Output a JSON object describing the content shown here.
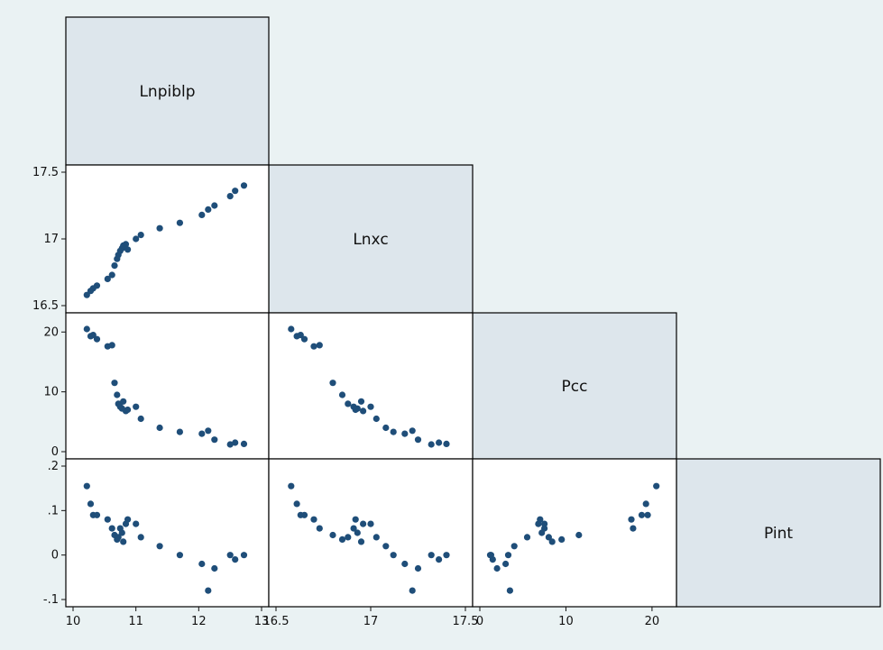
{
  "chart_data": {
    "type": "scatter",
    "subtype": "scatterplot-matrix-lower-half",
    "grid": false,
    "marker_color": "#1f4e79",
    "label_box_color": "#dde6ec",
    "background_color": "#eaf2f3",
    "variables": [
      {
        "name": "Lnpiblp",
        "range": [
          10,
          13
        ],
        "ticks": [
          10,
          11,
          12,
          13
        ],
        "tick_labels": [
          "10",
          "11",
          "12",
          "13"
        ]
      },
      {
        "name": "Lnxc",
        "range": [
          16.5,
          17.5
        ],
        "ticks": [
          16.5,
          17,
          17.5
        ],
        "tick_labels": [
          "16.5",
          "17",
          "17.5"
        ]
      },
      {
        "name": "Pcc",
        "range": [
          0,
          22
        ],
        "ticks": [
          0,
          10,
          20
        ],
        "tick_labels": [
          "0",
          "10",
          "20"
        ]
      },
      {
        "name": "Pint",
        "range": [
          -0.1,
          0.2
        ],
        "ticks": [
          -0.1,
          0,
          0.1,
          0.2
        ],
        "tick_labels": [
          "-.1",
          "0",
          ".1",
          ".2"
        ]
      }
    ],
    "observations": [
      {
        "Lnpiblp": 10.22,
        "Lnxc": 16.58,
        "Pcc": 20.5,
        "Pint": 0.155
      },
      {
        "Lnpiblp": 10.28,
        "Lnxc": 16.61,
        "Pcc": 19.3,
        "Pint": 0.115
      },
      {
        "Lnpiblp": 10.32,
        "Lnxc": 16.63,
        "Pcc": 19.5,
        "Pint": 0.09
      },
      {
        "Lnpiblp": 10.38,
        "Lnxc": 16.65,
        "Pcc": 18.8,
        "Pint": 0.09
      },
      {
        "Lnpiblp": 10.55,
        "Lnxc": 16.7,
        "Pcc": 17.6,
        "Pint": 0.08
      },
      {
        "Lnpiblp": 10.62,
        "Lnxc": 16.73,
        "Pcc": 17.8,
        "Pint": 0.06
      },
      {
        "Lnpiblp": 10.66,
        "Lnxc": 16.8,
        "Pcc": 11.5,
        "Pint": 0.045
      },
      {
        "Lnpiblp": 10.7,
        "Lnxc": 16.85,
        "Pcc": 9.5,
        "Pint": 0.035
      },
      {
        "Lnpiblp": 10.72,
        "Lnxc": 16.88,
        "Pcc": 8.0,
        "Pint": 0.04
      },
      {
        "Lnpiblp": 10.75,
        "Lnxc": 16.91,
        "Pcc": 7.5,
        "Pint": 0.06
      },
      {
        "Lnpiblp": 10.78,
        "Lnxc": 16.93,
        "Pcc": 7.2,
        "Pint": 0.05
      },
      {
        "Lnpiblp": 10.8,
        "Lnxc": 16.95,
        "Pcc": 8.4,
        "Pint": 0.03
      },
      {
        "Lnpiblp": 10.84,
        "Lnxc": 16.96,
        "Pcc": 6.8,
        "Pint": 0.07
      },
      {
        "Lnpiblp": 10.87,
        "Lnxc": 16.92,
        "Pcc": 7.0,
        "Pint": 0.08
      },
      {
        "Lnpiblp": 11.0,
        "Lnxc": 17.0,
        "Pcc": 7.5,
        "Pint": 0.07
      },
      {
        "Lnpiblp": 11.08,
        "Lnxc": 17.03,
        "Pcc": 5.5,
        "Pint": 0.04
      },
      {
        "Lnpiblp": 11.38,
        "Lnxc": 17.08,
        "Pcc": 4.0,
        "Pint": 0.02
      },
      {
        "Lnpiblp": 11.7,
        "Lnxc": 17.12,
        "Pcc": 3.3,
        "Pint": 0.0
      },
      {
        "Lnpiblp": 12.05,
        "Lnxc": 17.18,
        "Pcc": 3.0,
        "Pint": -0.02
      },
      {
        "Lnpiblp": 12.15,
        "Lnxc": 17.22,
        "Pcc": 3.5,
        "Pint": -0.08
      },
      {
        "Lnpiblp": 12.25,
        "Lnxc": 17.25,
        "Pcc": 2.0,
        "Pint": -0.03
      },
      {
        "Lnpiblp": 12.5,
        "Lnxc": 17.32,
        "Pcc": 1.2,
        "Pint": 0.0
      },
      {
        "Lnpiblp": 12.58,
        "Lnxc": 17.36,
        "Pcc": 1.5,
        "Pint": -0.01
      },
      {
        "Lnpiblp": 12.72,
        "Lnxc": 17.4,
        "Pcc": 1.3,
        "Pint": 0.0
      }
    ]
  }
}
